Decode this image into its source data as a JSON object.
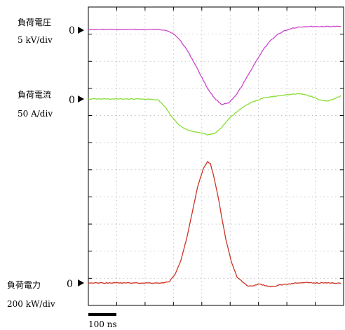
{
  "chart_data": {
    "type": "line",
    "x_unit": "ns",
    "scale_bar": {
      "label": "100 ns",
      "value_ns": 100
    },
    "grid": true,
    "x_divisions": 9,
    "y_divisions": 11,
    "series": [
      {
        "name": "負荷電圧",
        "scale": "5 kV/div",
        "zero_marker": "0",
        "color": "#cc44cc",
        "x": [
          0,
          100,
          250,
          275,
          300,
          325,
          350,
          375,
          400,
          425,
          450,
          475,
          500,
          525,
          550,
          575,
          600,
          625,
          650,
          675,
          700,
          725,
          750,
          775,
          800,
          825,
          850,
          875,
          900
        ],
        "y": [
          0,
          0,
          0,
          -0.02,
          -0.15,
          -0.4,
          -0.8,
          -1.3,
          -1.85,
          -2.4,
          -2.8,
          -3.05,
          -3.0,
          -2.7,
          -2.25,
          -1.75,
          -1.25,
          -0.8,
          -0.45,
          -0.2,
          -0.05,
          0.05,
          0.1,
          0.12,
          0.12,
          0.12,
          0.12,
          0.12,
          0.12
        ]
      },
      {
        "name": "負荷電流",
        "scale": "50 A/div",
        "zero_marker": "0",
        "color": "#88dd33",
        "x": [
          0,
          100,
          200,
          250,
          275,
          300,
          325,
          350,
          375,
          400,
          425,
          450,
          475,
          500,
          525,
          550,
          575,
          600,
          625,
          650,
          675,
          700,
          725,
          750,
          775,
          800,
          825,
          850,
          875,
          900
        ],
        "y": [
          0,
          0,
          0,
          -0.05,
          -0.4,
          -0.9,
          -1.25,
          -1.45,
          -1.55,
          -1.6,
          -1.7,
          -1.65,
          -1.35,
          -0.95,
          -0.65,
          -0.4,
          -0.2,
          -0.08,
          0.05,
          0.1,
          0.15,
          0.2,
          0.22,
          0.25,
          0.2,
          0.1,
          -0.05,
          -0.1,
          0.0,
          0.15
        ]
      },
      {
        "name": "負荷電力",
        "scale": "200 kW/div",
        "zero_marker": "0",
        "color": "#cc3322",
        "x": [
          0,
          100,
          200,
          270,
          290,
          310,
          330,
          350,
          370,
          390,
          410,
          425,
          435,
          445,
          455,
          465,
          475,
          490,
          510,
          530,
          550,
          570,
          590,
          610,
          630,
          645,
          660,
          680,
          700,
          720,
          740,
          760,
          780,
          800,
          850,
          900
        ],
        "y": [
          0,
          0,
          0,
          0,
          0.1,
          0.5,
          1.3,
          2.5,
          4.0,
          5.5,
          6.5,
          6.9,
          6.8,
          6.2,
          5.5,
          4.7,
          3.8,
          2.5,
          1.2,
          0.35,
          0.05,
          -0.2,
          -0.15,
          -0.05,
          -0.15,
          -0.2,
          -0.2,
          -0.12,
          -0.08,
          -0.05,
          0,
          0,
          0.02,
          0,
          0,
          0
        ]
      }
    ]
  }
}
